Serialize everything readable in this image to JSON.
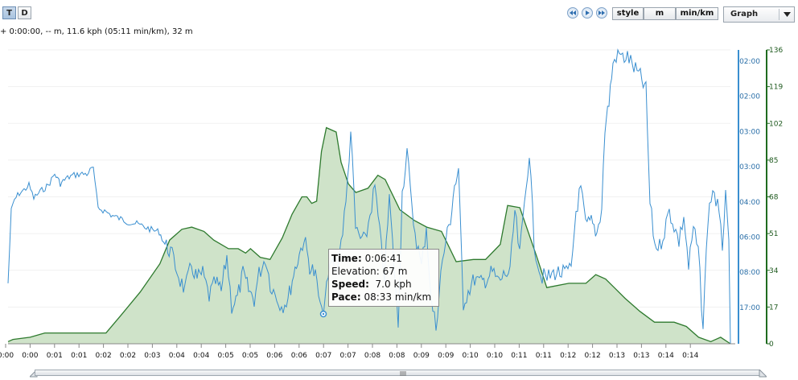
{
  "toolbar": {
    "time_toggle": "T",
    "distance_toggle": "D",
    "nav_prev": "rewind-icon",
    "nav_play": "play-icon",
    "nav_next": "fast-forward-icon",
    "style_label": "style",
    "unit_label": "m",
    "pace_unit_label": "min/km",
    "view_select": "Graph"
  },
  "status_line": "+ 0:00:00, -- m, 11.6 kph (05:11 min/km), 32 m",
  "tooltip": {
    "time_label": "Time:",
    "time_value": "0:06:41",
    "elevation_label": "Elevation:",
    "elevation_value": "67 m",
    "speed_label": "Speed:",
    "speed_value": "7.0 kph",
    "pace_label": "Pace:",
    "pace_value": "08:33 min/km"
  },
  "chart_data": {
    "type": "area",
    "x_tick_labels": [
      "0:00",
      "0:00",
      "0:01",
      "0:01",
      "0:02",
      "0:02",
      "0:03",
      "0:04",
      "0:04",
      "0:05",
      "0:05",
      "0:06",
      "0:06",
      "0:07",
      "0:07",
      "0:08",
      "0:08",
      "0:09",
      "0:09",
      "0:10",
      "0:10",
      "0:11",
      "0:11",
      "0:12",
      "0:12",
      "0:13",
      "0:13",
      "0:14",
      "0:14"
    ],
    "elevation_axis": {
      "ticks": [
        0,
        17,
        34,
        51,
        68,
        85,
        102,
        119,
        136
      ],
      "range": [
        0,
        136
      ],
      "color": "#1f6b1f"
    },
    "pace_axis": {
      "tick_labels": [
        "02:00",
        "02:00",
        "03:00",
        "03:00",
        "04:00",
        "06:00",
        "08:00",
        "17:00"
      ],
      "color": "#3a8fd0"
    },
    "elevation_series": {
      "color": "#2e7a2e",
      "fill": "#cfe3c9",
      "x_minutes": [
        0,
        0.1,
        0.45,
        0.75,
        1.1,
        2.0,
        2.3,
        2.7,
        3.1,
        3.3,
        3.55,
        3.75,
        4.0,
        4.2,
        4.5,
        4.7,
        4.85,
        4.95,
        5.15,
        5.35,
        5.6,
        5.8,
        6.0,
        6.1,
        6.2,
        6.3,
        6.4,
        6.5,
        6.7,
        6.8,
        6.95,
        7.1,
        7.35,
        7.55,
        7.7,
        8.0,
        8.3,
        8.55,
        8.85,
        9.15,
        9.5,
        9.75,
        10.05,
        10.2,
        10.45,
        10.8,
        11.0,
        11.45,
        11.8,
        12.0,
        12.2,
        12.6,
        12.9,
        13.2,
        13.6,
        13.85,
        14.1,
        14.35,
        14.55,
        14.75
      ],
      "elevation_m": [
        1,
        2,
        3,
        5,
        5,
        5,
        13,
        24,
        37,
        48,
        53,
        54,
        52,
        48,
        44,
        44,
        42,
        44,
        40,
        39,
        49,
        60,
        68,
        68,
        65,
        66,
        89,
        100,
        98,
        84,
        74,
        70,
        72,
        78,
        76,
        62,
        57,
        54,
        52,
        38,
        39,
        39,
        46,
        64,
        63,
        40,
        26,
        28,
        28,
        32,
        30,
        21,
        15,
        10,
        10,
        8,
        3,
        1,
        3,
        0
      ]
    },
    "pace_series": {
      "color": "#3a8fd0",
      "note": "speed/pace trace plotted on reciprocal pace axis"
    }
  }
}
